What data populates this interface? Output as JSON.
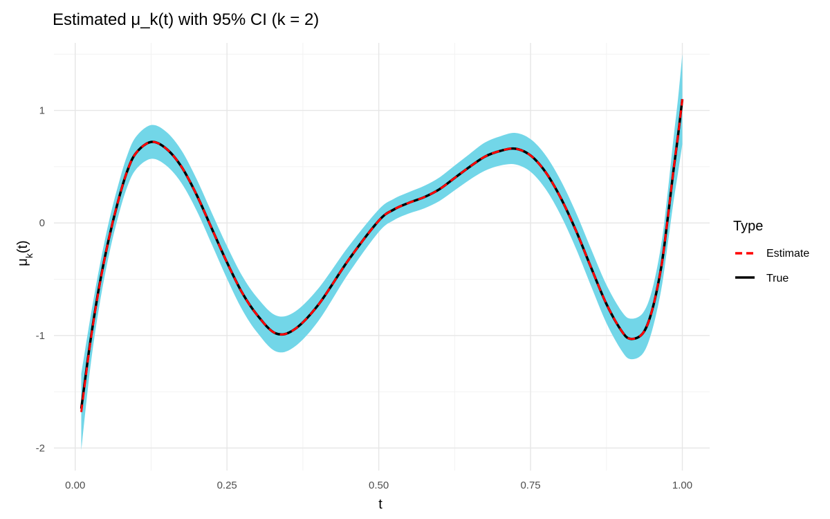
{
  "chart_data": {
    "type": "line",
    "title": "Estimated μ_k(t) with 95% CI (k = 2)",
    "xlabel": "t",
    "ylabel": {
      "base": "μ",
      "subscript": "k",
      "suffix": "(t)"
    },
    "xlim": [
      -0.035,
      1.045
    ],
    "ylim": [
      -2.2,
      1.6
    ],
    "x_ticks": [
      0.0,
      0.25,
      0.5,
      0.75,
      1.0
    ],
    "x_tick_labels": [
      "0.00",
      "0.25",
      "0.50",
      "0.75",
      "1.00"
    ],
    "y_ticks": [
      -2,
      -1,
      0,
      1
    ],
    "y_tick_labels": [
      "-2",
      "-1",
      "0",
      "1"
    ],
    "grid": true,
    "legend": {
      "title": "Type",
      "placement": "right",
      "entries": [
        {
          "label": "Estimate",
          "color": "#ff0000",
          "style": "dashed"
        },
        {
          "label": "True",
          "color": "#000000",
          "style": "solid"
        }
      ]
    },
    "band_color": "#72d6e8",
    "x": [
      0.01,
      0.025,
      0.04,
      0.055,
      0.07,
      0.085,
      0.1,
      0.125,
      0.15,
      0.175,
      0.2,
      0.225,
      0.25,
      0.275,
      0.3,
      0.33,
      0.36,
      0.4,
      0.45,
      0.5,
      0.525,
      0.55,
      0.575,
      0.6,
      0.625,
      0.65,
      0.675,
      0.7,
      0.725,
      0.75,
      0.775,
      0.8,
      0.825,
      0.85,
      0.875,
      0.9,
      0.915,
      0.935,
      0.95,
      0.965,
      0.975,
      0.985,
      0.993,
      1.0
    ],
    "series": [
      {
        "name": "True",
        "values": [
          -1.65,
          -1.05,
          -0.55,
          -0.15,
          0.18,
          0.45,
          0.62,
          0.72,
          0.66,
          0.5,
          0.25,
          -0.05,
          -0.35,
          -0.62,
          -0.82,
          -0.98,
          -0.95,
          -0.73,
          -0.33,
          0.02,
          0.12,
          0.18,
          0.23,
          0.3,
          0.4,
          0.5,
          0.59,
          0.64,
          0.66,
          0.6,
          0.45,
          0.22,
          -0.07,
          -0.4,
          -0.72,
          -0.96,
          -1.03,
          -0.98,
          -0.78,
          -0.4,
          0.0,
          0.45,
          0.78,
          1.1
        ]
      },
      {
        "name": "Estimate",
        "values": [
          -1.68,
          -1.06,
          -0.56,
          -0.15,
          0.18,
          0.45,
          0.62,
          0.72,
          0.66,
          0.5,
          0.25,
          -0.05,
          -0.35,
          -0.62,
          -0.82,
          -0.98,
          -0.95,
          -0.73,
          -0.33,
          0.02,
          0.12,
          0.18,
          0.23,
          0.3,
          0.4,
          0.5,
          0.59,
          0.64,
          0.66,
          0.6,
          0.45,
          0.22,
          -0.07,
          -0.4,
          -0.72,
          -0.96,
          -1.03,
          -0.98,
          -0.78,
          -0.4,
          0.0,
          0.45,
          0.78,
          1.1
        ]
      }
    ],
    "ci_half_width": [
      0.34,
      0.22,
      0.17,
      0.15,
      0.14,
      0.14,
      0.145,
      0.15,
      0.15,
      0.145,
      0.14,
      0.14,
      0.145,
      0.15,
      0.155,
      0.16,
      0.155,
      0.145,
      0.12,
      0.1,
      0.095,
      0.095,
      0.1,
      0.105,
      0.11,
      0.115,
      0.125,
      0.13,
      0.14,
      0.145,
      0.15,
      0.155,
      0.16,
      0.165,
      0.17,
      0.175,
      0.18,
      0.18,
      0.18,
      0.2,
      0.23,
      0.28,
      0.33,
      0.4
    ]
  }
}
